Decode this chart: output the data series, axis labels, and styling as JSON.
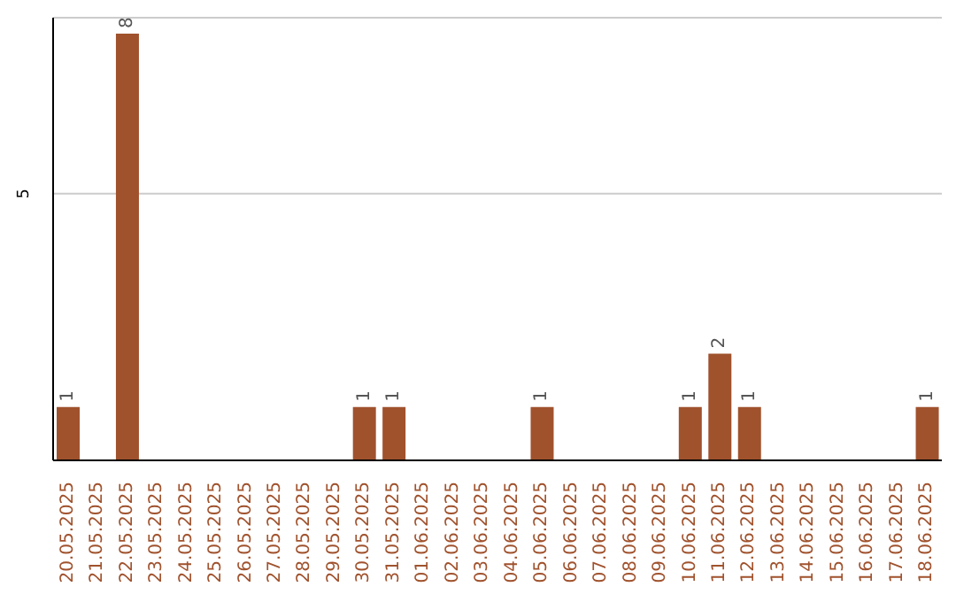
{
  "chart_data": {
    "type": "bar",
    "categories": [
      "20.05.2025",
      "21.05.2025",
      "22.05.2025",
      "23.05.2025",
      "24.05.2025",
      "25.05.2025",
      "26.05.2025",
      "27.05.2025",
      "28.05.2025",
      "29.05.2025",
      "30.05.2025",
      "31.05.2025",
      "01.06.2025",
      "02.06.2025",
      "03.06.2025",
      "04.06.2025",
      "05.06.2025",
      "06.06.2025",
      "07.06.2025",
      "08.06.2025",
      "09.06.2025",
      "10.06.2025",
      "11.06.2025",
      "12.06.2025",
      "13.06.2025",
      "14.06.2025",
      "15.06.2025",
      "16.06.2025",
      "17.06.2025",
      "18.06.2025"
    ],
    "values": [
      1,
      0,
      8,
      0,
      0,
      0,
      0,
      0,
      0,
      0,
      1,
      1,
      0,
      0,
      0,
      0,
      1,
      0,
      0,
      0,
      0,
      1,
      2,
      1,
      0,
      0,
      0,
      0,
      0,
      1
    ],
    "value_labels": [
      "1",
      null,
      "8",
      null,
      null,
      null,
      null,
      null,
      null,
      null,
      "1",
      "1",
      null,
      null,
      null,
      null,
      "1",
      null,
      null,
      null,
      null,
      "1",
      "2",
      "1",
      null,
      null,
      null,
      null,
      null,
      "1"
    ],
    "color": "#a0522d",
    "ylim": [
      0,
      8.3
    ],
    "yticks": [
      5
    ],
    "grid": "y"
  }
}
